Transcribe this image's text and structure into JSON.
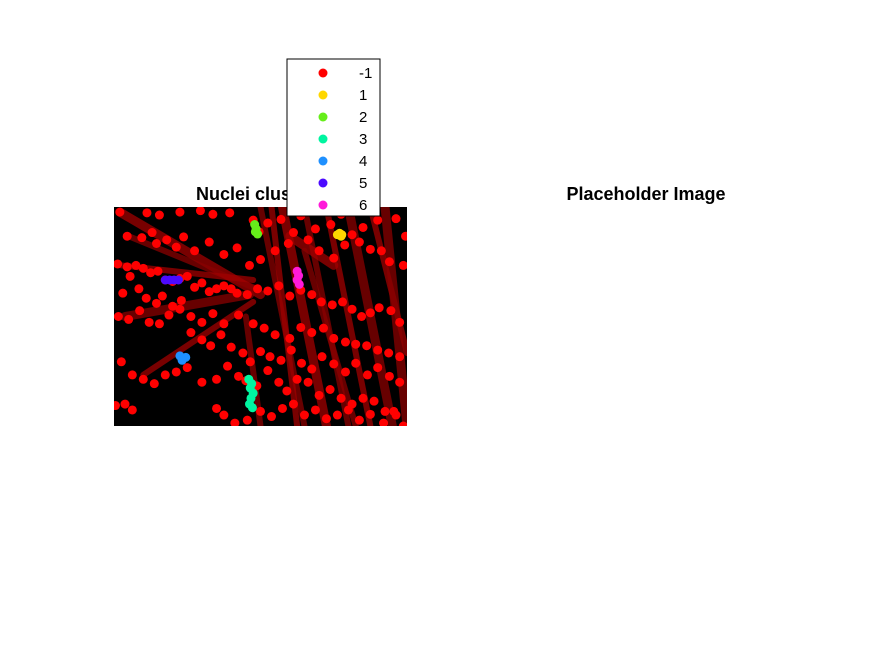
{
  "chart_data": [
    {
      "type": "scatter",
      "title": "Nuclei clusters",
      "xlabel": "",
      "ylabel": "",
      "xlim": [
        0,
        400
      ],
      "ylim": [
        0,
        300
      ],
      "background_image": "fluorescence micrograph of red-stained elongated cells on black background",
      "legend": {
        "placement": "top-right",
        "entries": [
          {
            "label": "-1",
            "color": "#ff0000"
          },
          {
            "label": "1",
            "color": "#ffd700"
          },
          {
            "label": "2",
            "color": "#66ee1a"
          },
          {
            "label": "3",
            "color": "#00f5a0"
          },
          {
            "label": "4",
            "color": "#1e90ff"
          },
          {
            "label": "5",
            "color": "#4b0aff"
          },
          {
            "label": "6",
            "color": "#ff1ad9"
          }
        ]
      },
      "series": [
        {
          "name": "-1",
          "color": "#ff0000",
          "points": [
            [
              8,
              7
            ],
            [
              45,
              8
            ],
            [
              62,
              11
            ],
            [
              90,
              7
            ],
            [
              118,
              5
            ],
            [
              135,
              10
            ],
            [
              158,
              8
            ],
            [
              190,
              18
            ],
            [
              198,
              34
            ],
            [
              210,
              22
            ],
            [
              228,
              17
            ],
            [
              245,
              35
            ],
            [
              255,
              12
            ],
            [
              275,
              30
            ],
            [
              296,
              24
            ],
            [
              310,
              10
            ],
            [
              325,
              38
            ],
            [
              340,
              28
            ],
            [
              360,
              18
            ],
            [
              385,
              16
            ],
            [
              398,
              40
            ],
            [
              18,
              40
            ],
            [
              38,
              42
            ],
            [
              52,
              35
            ],
            [
              58,
              50
            ],
            [
              72,
              45
            ],
            [
              85,
              55
            ],
            [
              95,
              41
            ],
            [
              110,
              60
            ],
            [
              130,
              48
            ],
            [
              150,
              65
            ],
            [
              168,
              56
            ],
            [
              185,
              80
            ],
            [
              200,
              72
            ],
            [
              220,
              60
            ],
            [
              238,
              50
            ],
            [
              265,
              45
            ],
            [
              280,
              60
            ],
            [
              300,
              70
            ],
            [
              315,
              52
            ],
            [
              335,
              48
            ],
            [
              350,
              58
            ],
            [
              365,
              60
            ],
            [
              376,
              75
            ],
            [
              395,
              80
            ],
            [
              5,
              78
            ],
            [
              18,
              82
            ],
            [
              30,
              80
            ],
            [
              40,
              84
            ],
            [
              50,
              90
            ],
            [
              60,
              88
            ],
            [
              70,
              100
            ],
            [
              80,
              102
            ],
            [
              90,
              98
            ],
            [
              100,
              95
            ],
            [
              110,
              110
            ],
            [
              120,
              104
            ],
            [
              130,
              116
            ],
            [
              140,
              112
            ],
            [
              150,
              108
            ],
            [
              160,
              112
            ],
            [
              168,
              118
            ],
            [
              182,
              120
            ],
            [
              196,
              112
            ],
            [
              210,
              115
            ],
            [
              225,
              108
            ],
            [
              240,
              122
            ],
            [
              255,
              114
            ],
            [
              270,
              120
            ],
            [
              283,
              130
            ],
            [
              298,
              134
            ],
            [
              312,
              130
            ],
            [
              325,
              140
            ],
            [
              338,
              150
            ],
            [
              350,
              145
            ],
            [
              362,
              138
            ],
            [
              378,
              142
            ],
            [
              390,
              158
            ],
            [
              6,
              150
            ],
            [
              20,
              154
            ],
            [
              35,
              142
            ],
            [
              48,
              158
            ],
            [
              62,
              160
            ],
            [
              75,
              148
            ],
            [
              90,
              140
            ],
            [
              105,
              150
            ],
            [
              120,
              158
            ],
            [
              135,
              146
            ],
            [
              150,
              160
            ],
            [
              170,
              148
            ],
            [
              190,
              160
            ],
            [
              205,
              166
            ],
            [
              220,
              175
            ],
            [
              240,
              180
            ],
            [
              255,
              165
            ],
            [
              270,
              172
            ],
            [
              286,
              166
            ],
            [
              300,
              180
            ],
            [
              316,
              185
            ],
            [
              330,
              188
            ],
            [
              345,
              190
            ],
            [
              360,
              196
            ],
            [
              375,
              200
            ],
            [
              390,
              205
            ],
            [
              10,
              212
            ],
            [
              25,
              230
            ],
            [
              40,
              236
            ],
            [
              55,
              242
            ],
            [
              70,
              230
            ],
            [
              85,
              226
            ],
            [
              100,
              220
            ],
            [
              120,
              240
            ],
            [
              140,
              236
            ],
            [
              155,
              218
            ],
            [
              170,
              232
            ],
            [
              180,
              238
            ],
            [
              195,
              245
            ],
            [
              210,
              224
            ],
            [
              225,
              240
            ],
            [
              236,
              252
            ],
            [
              250,
              236
            ],
            [
              265,
              240
            ],
            [
              280,
              258
            ],
            [
              295,
              250
            ],
            [
              310,
              262
            ],
            [
              325,
              270
            ],
            [
              340,
              262
            ],
            [
              355,
              266
            ],
            [
              370,
              280
            ],
            [
              385,
              285
            ],
            [
              2,
              272
            ],
            [
              15,
              270
            ],
            [
              25,
              278
            ],
            [
              140,
              276
            ],
            [
              150,
              285
            ],
            [
              165,
              296
            ],
            [
              182,
              292
            ],
            [
              200,
              280
            ],
            [
              215,
              287
            ],
            [
              230,
              276
            ],
            [
              245,
              270
            ],
            [
              260,
              285
            ],
            [
              275,
              278
            ],
            [
              290,
              290
            ],
            [
              305,
              285
            ],
            [
              320,
              278
            ],
            [
              335,
              292
            ],
            [
              350,
              284
            ],
            [
              368,
              296
            ],
            [
              382,
              280
            ],
            [
              395,
              300
            ],
            [
              12,
              118
            ],
            [
              22,
              95
            ],
            [
              34,
              112
            ],
            [
              44,
              125
            ],
            [
              58,
              132
            ],
            [
              66,
              122
            ],
            [
              80,
              136
            ],
            [
              92,
              128
            ],
            [
              105,
              172
            ],
            [
              120,
              182
            ],
            [
              132,
              190
            ],
            [
              146,
              175
            ],
            [
              160,
              192
            ],
            [
              176,
              200
            ],
            [
              186,
              212
            ],
            [
              200,
              198
            ],
            [
              213,
              205
            ],
            [
              228,
              210
            ],
            [
              242,
              196
            ],
            [
              256,
              214
            ],
            [
              270,
              222
            ],
            [
              284,
              205
            ],
            [
              300,
              215
            ],
            [
              316,
              226
            ],
            [
              330,
              214
            ],
            [
              346,
              230
            ],
            [
              360,
              220
            ],
            [
              376,
              232
            ],
            [
              390,
              240
            ]
          ]
        },
        {
          "name": "1",
          "color": "#ffd700",
          "points": [
            [
              305,
              38
            ],
            [
              311,
              38
            ],
            [
              308,
              36
            ],
            [
              310,
              40
            ]
          ]
        },
        {
          "name": "2",
          "color": "#66ee1a",
          "points": [
            [
              192,
              24
            ],
            [
              194,
              30
            ],
            [
              196,
              37
            ],
            [
              193,
              34
            ]
          ]
        },
        {
          "name": "3",
          "color": "#00f5a0",
          "points": [
            [
              184,
              236
            ],
            [
              188,
              242
            ],
            [
              186,
              248
            ],
            [
              190,
              255
            ],
            [
              187,
              262
            ],
            [
              185,
              270
            ],
            [
              189,
              275
            ]
          ]
        },
        {
          "name": "4",
          "color": "#1e90ff",
          "points": [
            [
              90,
              204
            ],
            [
              94,
              208
            ],
            [
              98,
              206
            ],
            [
              93,
              210
            ]
          ]
        },
        {
          "name": "5",
          "color": "#4b0aff",
          "points": [
            [
              70,
              100
            ],
            [
              76,
              100
            ],
            [
              82,
              100
            ],
            [
              88,
              100
            ]
          ]
        },
        {
          "name": "6",
          "color": "#ff1ad9",
          "points": [
            [
              250,
              88
            ],
            [
              252,
              94
            ],
            [
              250,
              100
            ],
            [
              253,
              106
            ]
          ]
        }
      ]
    },
    {
      "type": "image",
      "title": "Placeholder Image"
    }
  ]
}
